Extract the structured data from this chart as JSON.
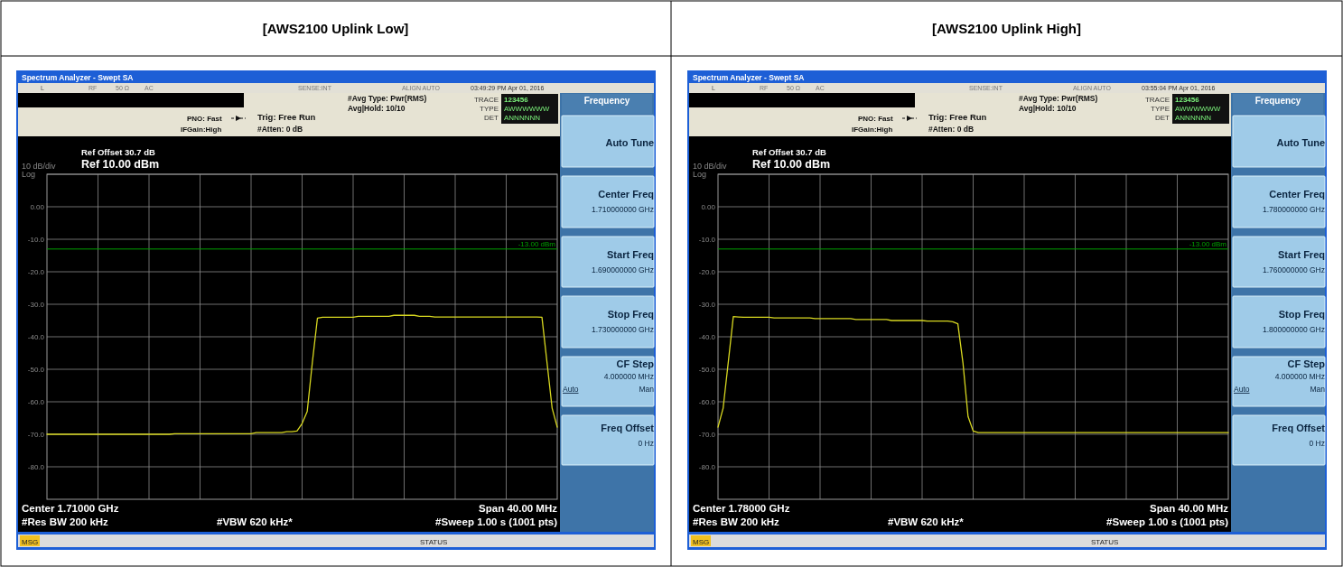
{
  "chart_data": [
    {
      "type": "line",
      "title": "[AWS2100 Uplink Low]",
      "categories": [
        null,
        null,
        null,
        null,
        null,
        null,
        null,
        null,
        null,
        null,
        null,
        null,
        null,
        null,
        null,
        null,
        null,
        null,
        null,
        null,
        null,
        null,
        null,
        null,
        null,
        null,
        null,
        null,
        null,
        null,
        null,
        null,
        null,
        null,
        null,
        null,
        null,
        null,
        null,
        null,
        null,
        null,
        null,
        null,
        null,
        null,
        null,
        null,
        null,
        null,
        null,
        null,
        null,
        null,
        null,
        null,
        null,
        null,
        null,
        null,
        null,
        null,
        null,
        null,
        null,
        null,
        null,
        null,
        null,
        null,
        null,
        null,
        null,
        null,
        null,
        null,
        null,
        null,
        null,
        null,
        null,
        null,
        null,
        null,
        null,
        null,
        null,
        null,
        null,
        null,
        null,
        null,
        null,
        null,
        null,
        null,
        null,
        null,
        null,
        null,
        null
      ],
      "ylim": [
        -90,
        10
      ],
      "yticks": [
        {
          "value": 10,
          "label": null
        },
        {
          "value": 0,
          "label": "0.00"
        },
        {
          "value": -10,
          "label": "-10.0"
        },
        {
          "value": -20,
          "label": "-20.0"
        },
        {
          "value": -30,
          "label": "-30.0"
        },
        {
          "value": -40,
          "label": "-40.0"
        },
        {
          "value": -50,
          "label": "-50.0"
        },
        {
          "value": -60,
          "label": "-60.0"
        },
        {
          "value": -70,
          "label": "-70.0"
        },
        {
          "value": -80,
          "label": "-80.0"
        }
      ],
      "tick_labels": "y",
      "grid": true,
      "ref_lines": [
        {
          "axis": "y",
          "value": -13,
          "label": "-13.00 dBm",
          "color": "#00a000"
        }
      ],
      "series": [
        {
          "color": "#d8d820",
          "values": [
            -70,
            -70,
            -70,
            -70,
            -70,
            -70,
            -70,
            -70,
            -70,
            -70,
            -70,
            -70,
            -70,
            -70,
            -70,
            -70,
            -70,
            -70,
            -70,
            -70,
            -70,
            -70,
            -70,
            -70,
            -70,
            -69.8,
            -69.8,
            -69.8,
            -69.8,
            -69.8,
            -69.8,
            -69.8,
            -69.8,
            -69.8,
            -69.8,
            -69.8,
            -69.8,
            -69.8,
            -69.8,
            -69.8,
            -69.8,
            -69.5,
            -69.5,
            -69.5,
            -69.5,
            -69.5,
            -69.5,
            -69.2,
            -69.2,
            -69,
            -66.7,
            -63,
            -48,
            -34.3,
            -34,
            -34,
            -34,
            -34,
            -34,
            -34,
            -34,
            -33.7,
            -33.7,
            -33.7,
            -33.7,
            -33.7,
            -33.7,
            -33.7,
            -33.4,
            -33.4,
            -33.4,
            -33.4,
            -33.4,
            -33.7,
            -33.7,
            -33.7,
            -33.9,
            -33.9,
            -33.9,
            -33.9,
            -33.9,
            -33.9,
            -33.9,
            -33.9,
            -33.9,
            -33.9,
            -33.9,
            -33.9,
            -33.9,
            -33.9,
            -33.9,
            -33.9,
            -33.9,
            -33.9,
            -33.9,
            -33.9,
            -33.9,
            -34,
            -48,
            -62,
            -67.8
          ]
        }
      ],
      "annotations": [
        "Spectrum Analyzer - Swept SA",
        "L",
        "RF",
        "50 Ω",
        "AC",
        "SENSE:INT",
        "ALIGN AUTO",
        "03:49:29 PM Apr 01, 2016",
        "#Avg Type: Pwr(RMS)",
        "Avg|Hold: 10/10",
        "TRACE",
        "123456",
        "TYPE",
        "AWWWWWW",
        "DET",
        "ANNNNNN",
        "PNO: Fast",
        "IFGain:High",
        "Trig: Free Run",
        "#Atten: 0 dB",
        "Ref Offset 30.7 dB",
        "Ref 10.00 dBm",
        "10 dB/div",
        "Log",
        "Center 1.71000 GHz",
        "#Res BW 200 kHz",
        "#VBW 620 kHz*",
        "Span 40.00 MHz",
        "#Sweep 1.00 s (1001 pts)",
        "MSG",
        "STATUS",
        "Frequency",
        "Auto Tune",
        "Center Freq",
        "1.710000000 GHz",
        "Start Freq",
        "1.690000000 GHz",
        "Stop Freq",
        "1.730000000 GHz",
        "CF Step",
        "4.000000 MHz",
        "Auto",
        "Man",
        "Freq Offset",
        "0 Hz"
      ]
    },
    {
      "type": "line",
      "title": "[AWS2100 Uplink High]",
      "categories": [
        null,
        null,
        null,
        null,
        null,
        null,
        null,
        null,
        null,
        null,
        null,
        null,
        null,
        null,
        null,
        null,
        null,
        null,
        null,
        null,
        null,
        null,
        null,
        null,
        null,
        null,
        null,
        null,
        null,
        null,
        null,
        null,
        null,
        null,
        null,
        null,
        null,
        null,
        null,
        null,
        null,
        null,
        null,
        null,
        null,
        null,
        null,
        null,
        null,
        null,
        null,
        null,
        null,
        null,
        null,
        null,
        null,
        null,
        null,
        null,
        null,
        null,
        null,
        null,
        null,
        null,
        null,
        null,
        null,
        null,
        null,
        null,
        null,
        null,
        null,
        null,
        null,
        null,
        null,
        null,
        null,
        null,
        null,
        null,
        null,
        null,
        null,
        null,
        null,
        null,
        null,
        null,
        null,
        null,
        null,
        null,
        null,
        null,
        null,
        null,
        null
      ],
      "ylim": [
        -90,
        10
      ],
      "yticks": [
        {
          "value": 10,
          "label": null
        },
        {
          "value": 0,
          "label": "0.00"
        },
        {
          "value": -10,
          "label": "-10.0"
        },
        {
          "value": -20,
          "label": "-20.0"
        },
        {
          "value": -30,
          "label": "-30.0"
        },
        {
          "value": -40,
          "label": "-40.0"
        },
        {
          "value": -50,
          "label": "-50.0"
        },
        {
          "value": -60,
          "label": "-60.0"
        },
        {
          "value": -70,
          "label": "-70.0"
        },
        {
          "value": -80,
          "label": "-80.0"
        }
      ],
      "tick_labels": "y",
      "grid": true,
      "ref_lines": [
        {
          "axis": "y",
          "value": -13,
          "label": "-13.00 dBm",
          "color": "#00a000"
        }
      ],
      "series": [
        {
          "color": "#d8d820",
          "values": [
            -67.8,
            -62,
            -48,
            -33.8,
            -33.9,
            -34,
            -34,
            -34,
            -34,
            -34,
            -34,
            -34.2,
            -34.2,
            -34.2,
            -34.2,
            -34.2,
            -34.2,
            -34.2,
            -34.2,
            -34.4,
            -34.4,
            -34.4,
            -34.4,
            -34.4,
            -34.4,
            -34.4,
            -34.4,
            -34.7,
            -34.7,
            -34.7,
            -34.7,
            -34.7,
            -34.7,
            -34.7,
            -35,
            -35,
            -35,
            -35,
            -35,
            -35,
            -35,
            -35.2,
            -35.2,
            -35.2,
            -35.2,
            -35.2,
            -35.4,
            -36,
            -48,
            -64.5,
            -69,
            -69.5,
            -69.5,
            -69.5,
            -69.5,
            -69.5,
            -69.5,
            -69.5,
            -69.5,
            -69.5,
            -69.5,
            -69.5,
            -69.5,
            -69.5,
            -69.5,
            -69.5,
            -69.5,
            -69.5,
            -69.5,
            -69.5,
            -69.5,
            -69.5,
            -69.5,
            -69.5,
            -69.5,
            -69.5,
            -69.5,
            -69.5,
            -69.5,
            -69.5,
            -69.5,
            -69.5,
            -69.5,
            -69.5,
            -69.5,
            -69.5,
            -69.5,
            -69.5,
            -69.5,
            -69.5,
            -69.5,
            -69.5,
            -69.5,
            -69.5,
            -69.5,
            -69.5,
            -69.5,
            -69.5,
            -69.5,
            -69.5,
            -69.5
          ]
        }
      ],
      "annotations": [
        "Spectrum Analyzer - Swept SA",
        "L",
        "RF",
        "50 Ω",
        "AC",
        "SENSE:INT",
        "ALIGN AUTO",
        "03:55:04 PM Apr 01, 2016",
        "#Avg Type: Pwr(RMS)",
        "Avg|Hold: 10/10",
        "TRACE",
        "123456",
        "TYPE",
        "AWWWWWW",
        "DET",
        "ANNNNNN",
        "PNO: Fast",
        "IFGain:High",
        "Trig: Free Run",
        "#Atten: 0 dB",
        "Ref Offset 30.7 dB",
        "Ref 10.00 dBm",
        "10 dB/div",
        "Log",
        "Center 1.78000 GHz",
        "#Res BW 200 kHz",
        "#VBW 620 kHz*",
        "Span 40.00 MHz",
        "#Sweep 1.00 s (1001 pts)",
        "MSG",
        "STATUS",
        "Frequency",
        "Auto Tune",
        "Center Freq",
        "1.780000000 GHz",
        "Start Freq",
        "1.760000000 GHz",
        "Stop Freq",
        "1.800000000 GHz",
        "CF Step",
        "4.000000 MHz",
        "Auto",
        "Man",
        "Freq Offset",
        "0 Hz"
      ]
    }
  ]
}
